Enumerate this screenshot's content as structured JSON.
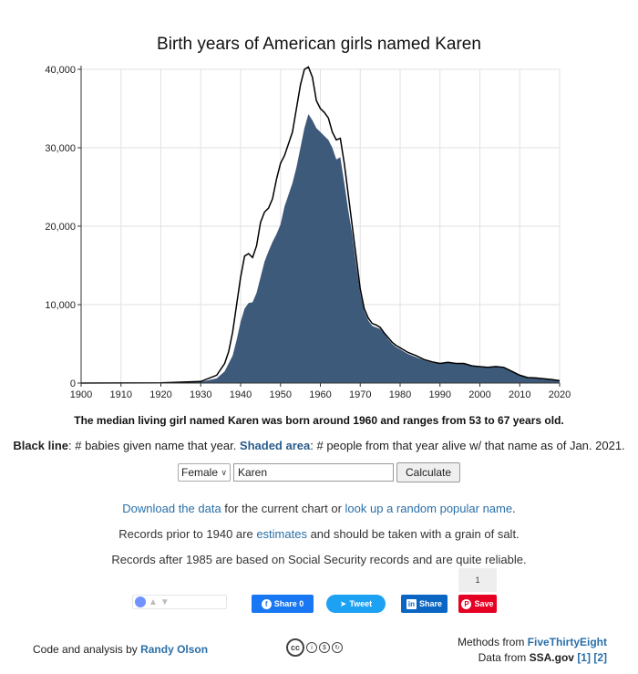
{
  "chart_data": {
    "type": "area",
    "title": "Birth years of American girls named Karen",
    "xlabel": "",
    "ylabel": "",
    "xlim": [
      1900,
      2020
    ],
    "ylim": [
      0,
      40000
    ],
    "x_ticks": [
      "1900",
      "1910",
      "1920",
      "1930",
      "1940",
      "1950",
      "1960",
      "1970",
      "1980",
      "1990",
      "2000",
      "2010",
      "2020"
    ],
    "y_ticks": [
      "0",
      "10,000",
      "20,000",
      "30,000",
      "40,000"
    ],
    "grid": true,
    "series": [
      {
        "kind": "line",
        "color": "#000000",
        "points": [
          [
            1900,
            0
          ],
          [
            1920,
            30
          ],
          [
            1930,
            200
          ],
          [
            1934,
            1000
          ],
          [
            1936,
            2500
          ],
          [
            1937,
            4000
          ],
          [
            1938,
            6500
          ],
          [
            1939,
            10000
          ],
          [
            1940,
            13500
          ],
          [
            1941,
            16200
          ],
          [
            1942,
            16500
          ],
          [
            1943,
            16000
          ],
          [
            1944,
            17500
          ],
          [
            1945,
            20500
          ],
          [
            1946,
            21800
          ],
          [
            1947,
            22300
          ],
          [
            1948,
            23500
          ],
          [
            1949,
            26000
          ],
          [
            1950,
            28000
          ],
          [
            1951,
            29000
          ],
          [
            1952,
            30500
          ],
          [
            1953,
            32000
          ],
          [
            1954,
            35000
          ],
          [
            1955,
            38000
          ],
          [
            1956,
            40000
          ],
          [
            1957,
            40300
          ],
          [
            1958,
            39000
          ],
          [
            1959,
            36000
          ],
          [
            1960,
            35000
          ],
          [
            1961,
            34500
          ],
          [
            1962,
            33800
          ],
          [
            1963,
            32000
          ],
          [
            1964,
            31000
          ],
          [
            1965,
            31200
          ],
          [
            1966,
            28000
          ],
          [
            1967,
            24000
          ],
          [
            1968,
            20000
          ],
          [
            1969,
            16000
          ],
          [
            1970,
            12000
          ],
          [
            1971,
            9500
          ],
          [
            1972,
            8300
          ],
          [
            1973,
            7600
          ],
          [
            1974,
            7400
          ],
          [
            1975,
            7100
          ],
          [
            1976,
            6400
          ],
          [
            1977,
            5800
          ],
          [
            1978,
            5200
          ],
          [
            1979,
            4800
          ],
          [
            1980,
            4500
          ],
          [
            1982,
            3900
          ],
          [
            1984,
            3500
          ],
          [
            1986,
            3000
          ],
          [
            1988,
            2700
          ],
          [
            1990,
            2500
          ],
          [
            1992,
            2650
          ],
          [
            1994,
            2500
          ],
          [
            1996,
            2500
          ],
          [
            1998,
            2200
          ],
          [
            2000,
            2100
          ],
          [
            2002,
            2000
          ],
          [
            2004,
            2100
          ],
          [
            2006,
            2000
          ],
          [
            2008,
            1500
          ],
          [
            2010,
            1000
          ],
          [
            2012,
            700
          ],
          [
            2014,
            650
          ],
          [
            2016,
            550
          ],
          [
            2018,
            450
          ],
          [
            2020,
            300
          ]
        ]
      },
      {
        "kind": "area",
        "color": "#3d5a7a",
        "points": [
          [
            1900,
            0
          ],
          [
            1920,
            30
          ],
          [
            1930,
            150
          ],
          [
            1934,
            600
          ],
          [
            1936,
            1500
          ],
          [
            1937,
            2500
          ],
          [
            1938,
            3500
          ],
          [
            1939,
            5500
          ],
          [
            1940,
            7800
          ],
          [
            1941,
            9500
          ],
          [
            1942,
            10200
          ],
          [
            1943,
            10300
          ],
          [
            1944,
            11500
          ],
          [
            1945,
            13500
          ],
          [
            1946,
            15500
          ],
          [
            1947,
            16800
          ],
          [
            1948,
            18000
          ],
          [
            1949,
            19000
          ],
          [
            1950,
            20200
          ],
          [
            1951,
            22500
          ],
          [
            1952,
            24000
          ],
          [
            1953,
            25500
          ],
          [
            1954,
            27500
          ],
          [
            1955,
            30000
          ],
          [
            1956,
            32500
          ],
          [
            1957,
            34300
          ],
          [
            1958,
            33500
          ],
          [
            1959,
            32500
          ],
          [
            1960,
            32000
          ],
          [
            1961,
            31500
          ],
          [
            1962,
            31000
          ],
          [
            1963,
            30000
          ],
          [
            1964,
            28500
          ],
          [
            1965,
            28800
          ],
          [
            1966,
            25500
          ],
          [
            1967,
            22000
          ],
          [
            1968,
            19000
          ],
          [
            1969,
            15000
          ],
          [
            1970,
            11500
          ],
          [
            1971,
            9200
          ],
          [
            1972,
            8000
          ],
          [
            1973,
            7300
          ],
          [
            1974,
            7100
          ],
          [
            1975,
            6900
          ],
          [
            1976,
            6300
          ],
          [
            1977,
            5600
          ],
          [
            1978,
            5000
          ],
          [
            1979,
            4600
          ],
          [
            1980,
            4300
          ],
          [
            1982,
            3700
          ],
          [
            1984,
            3300
          ],
          [
            1986,
            2900
          ],
          [
            1988,
            2600
          ],
          [
            1990,
            2450
          ],
          [
            1992,
            2600
          ],
          [
            1994,
            2450
          ],
          [
            1996,
            2450
          ],
          [
            1998,
            2150
          ],
          [
            2000,
            2050
          ],
          [
            2002,
            1950
          ],
          [
            2004,
            2050
          ],
          [
            2006,
            1950
          ],
          [
            2008,
            1450
          ],
          [
            2010,
            950
          ],
          [
            2012,
            650
          ],
          [
            2014,
            600
          ],
          [
            2016,
            500
          ],
          [
            2018,
            400
          ],
          [
            2020,
            250
          ]
        ]
      }
    ]
  },
  "summary": "The median living girl named Karen was born around 1960 and ranges from 53 to 67 years old.",
  "legend": {
    "black_label": "Black line",
    "black_text": ": # babies given name that year. ",
    "shaded_label": "Shaded area",
    "shaded_text": ": # people from that year alive w/ that name as of Jan. 2021."
  },
  "form": {
    "sex_value": "Female",
    "name_value": "Karen",
    "calculate_label": "Calculate"
  },
  "info": {
    "download_link": "Download the data",
    "download_text": " for the current chart or ",
    "random_link": "look up a random popular name",
    "random_end": ".",
    "prior_pre": "Records prior to 1940 are ",
    "prior_link": "estimates",
    "prior_post": " and should be taken with a grain of salt.",
    "after": "Records after 1985 are based on Social Security records and are quite reliable."
  },
  "social": {
    "fb_label": "Share 0",
    "tweet_label": "Tweet",
    "linkedin_label": "Share",
    "pin_label": "Save",
    "pin_count": "1"
  },
  "footer": {
    "code_text": "Code and analysis by ",
    "author": "Randy Olson",
    "methods_text": "Methods from ",
    "methods_link": "FiveThirtyEight",
    "data_text": "Data from ",
    "data_source": "SSA.gov",
    "ref1": "[1]",
    "ref2": "[2]"
  }
}
